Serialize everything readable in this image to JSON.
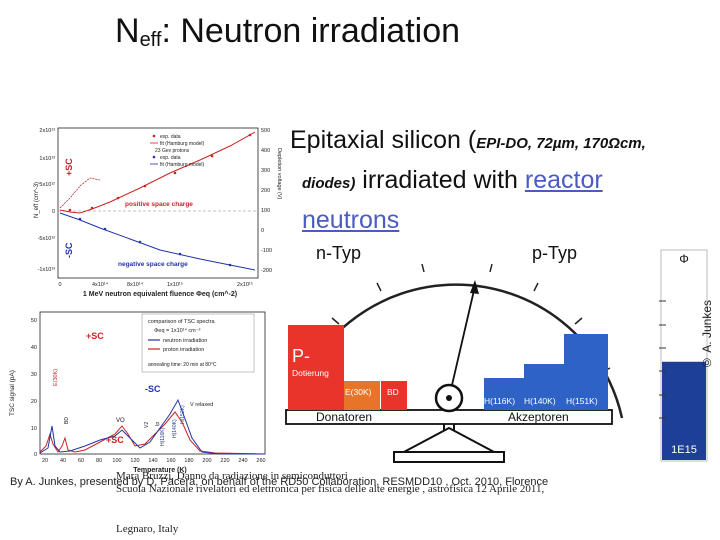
{
  "slide": {
    "title_main": "N",
    "title_sub": "eff",
    "title_rest": ": Neutron irradiation",
    "desc_line1_a": "Epitaxial silicon (",
    "desc_line1_b": "EPI-DO, 72",
    "desc_line1_mu": "µ",
    "desc_line1_c": "m, 170",
    "desc_line1_omega": "Ω",
    "desc_line1_d": "cm,",
    "desc_line2_a": "diodes)",
    "desc_line2_b": " irradiated with ",
    "desc_line2_link": "reactor",
    "desc_line3_link": "neutrons",
    "credit": "© A. Junkes",
    "footer_left": "By A. Junkes, presented by D. Pacera, on behalf of the RD50 Collaboration, RESMDD10 , Oct. 2010, Florence",
    "footer_mid": "Mara Bruzzi, Danno da radiazione in semiconduttori",
    "footer_mid2": "Scuola Nazionale rivelatori ed elettronica per fisica delle alte energie , astrofisica 12 Aprile 2011,",
    "footer_mid3": "Legnaro, Italy"
  },
  "plot_top": {
    "y_left_label": "N_eff (cm^-3)",
    "y_right_label": "Depletion voltage (V)",
    "x_label": "1 MeV neutron equivalent fluence Φeq (cm^-2)",
    "y_left_ticks": [
      "2x10¹³",
      "1x10¹³",
      "5x10¹²",
      "0",
      "-5x10¹²",
      "-1x10¹³"
    ],
    "y_right_ticks": [
      "500",
      "400",
      "300",
      "200",
      "100",
      "0",
      "-100",
      "-200"
    ],
    "x_ticks": [
      "0",
      "4x10¹⁴",
      "8x10¹⁴",
      "1x10¹⁵",
      "2x10¹⁵"
    ],
    "legend": [
      "exp. data",
      "fit (Hamburg model)",
      "23 Gev protons",
      "exp. data",
      "fit (Hamburg model)"
    ],
    "label_plus_sc": "+SC",
    "label_minus_sc": "-SC",
    "label_positive": "positive space charge",
    "label_negative": "negative space charge",
    "colors": {
      "red": "#cc2222",
      "blue": "#2233aa"
    }
  },
  "plot_bottom": {
    "y_label": "TSC signal (pA)",
    "x_label": "Temperature (K)",
    "y_ticks": [
      "50",
      "40",
      "30",
      "20",
      "10",
      "0"
    ],
    "x_ticks": [
      "20",
      "40",
      "60",
      "80",
      "100",
      "120",
      "140",
      "160",
      "180",
      "200",
      "220",
      "240",
      "260"
    ],
    "legend_title": "comparison of TSC spectra",
    "legend_fluence": "Φeq = 1x10¹⁴ cm⁻²",
    "legend_neutron": "neutron irradiation",
    "legend_proton": "proton irradiation",
    "legend_anneal": "annealing time: 20 min at 80°C",
    "label_plus_sc_top": "+SC",
    "label_minus_sc": "-SC",
    "label_plus_sc_bottom": "+SC",
    "label_e30k": "E(30K)",
    "label_vo": "VO",
    "label_bd": "BD",
    "label_v2": "V2",
    "label_ip": "Ip",
    "label_vrelaxed": "V relaxed",
    "label_h116": "H(116K)",
    "label_h140": "H(140K)",
    "label_h152": "H(152K)"
  },
  "balance": {
    "label_n": "n-Typ",
    "label_p": "p-Typ",
    "label_p_dot": "P-",
    "label_dotierung": "Dotierung",
    "label_e30k": "E(30K)",
    "label_bd": "BD",
    "label_h116": "H(116K)",
    "label_h140": "H(140K)",
    "label_h151": "H(151K)",
    "label_donatoren": "Donatoren",
    "label_akzeptoren": "Akzeptoren",
    "colors": {
      "red": "#e8342a",
      "orange": "#e8742a",
      "blue": "#2e62c5",
      "dark_blue": "#1e3f96"
    }
  },
  "gauge": {
    "label_phi": "Φ",
    "label_value": "1E15",
    "level": 0.47,
    "color": "#1e3f96"
  }
}
